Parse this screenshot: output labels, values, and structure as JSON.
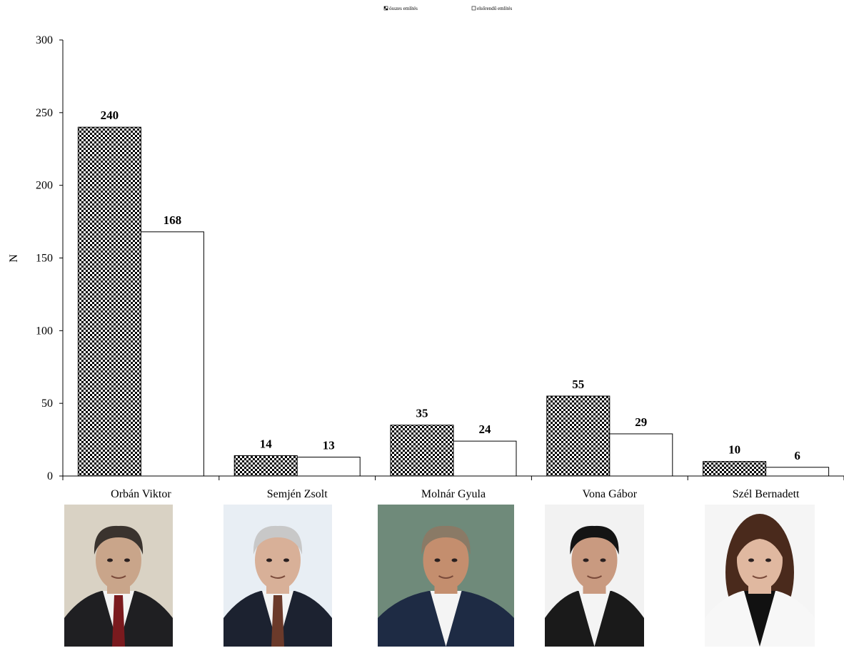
{
  "chart_data": {
    "type": "bar",
    "title": "",
    "xlabel": "",
    "ylabel": "N",
    "ylim": [
      0,
      300
    ],
    "yticks": [
      0,
      50,
      100,
      150,
      200,
      250,
      300
    ],
    "grid": false,
    "legend_position": "top",
    "categories": [
      "Orbán Viktor",
      "Semjén Zsolt",
      "Molnár Gyula",
      "Vona Gábor",
      "Szél Bernadett"
    ],
    "series": [
      {
        "name": "összes említés",
        "values": [
          240,
          14,
          35,
          55,
          10
        ],
        "fill": "checkered"
      },
      {
        "name": "elsőrendű említés",
        "values": [
          168,
          13,
          24,
          29,
          6
        ],
        "fill": "white"
      }
    ]
  },
  "photos": [
    {
      "subject": "Orbán Viktor",
      "bg": "#d9d2c4",
      "suit": "#1f1f22",
      "tie": "#7a1a1e",
      "hair": "#3a332e",
      "skin": "#c9a58a"
    },
    {
      "subject": "Semjén Zsolt",
      "bg": "#e8eef4",
      "suit": "#1c2230",
      "tie": "#6b3a2a",
      "hair": "#c8c8c8",
      "skin": "#d8b098"
    },
    {
      "subject": "Molnár Gyula",
      "bg": "#6f8a7a",
      "suit": "#1e2b44",
      "tie": "#1e2b44",
      "hair": "#8a7a66",
      "skin": "#c48e6e"
    },
    {
      "subject": "Vona Gábor",
      "bg": "#f2f2f2",
      "suit": "#1a1a1a",
      "tie": "#ffffff",
      "hair": "#141414",
      "skin": "#c99a80"
    },
    {
      "subject": "Szél Bernadett",
      "bg": "#f5f5f5",
      "suit": "#f7f7f7",
      "tie": "#111111",
      "hair": "#4a2a1c",
      "skin": "#e0b8a0"
    }
  ]
}
